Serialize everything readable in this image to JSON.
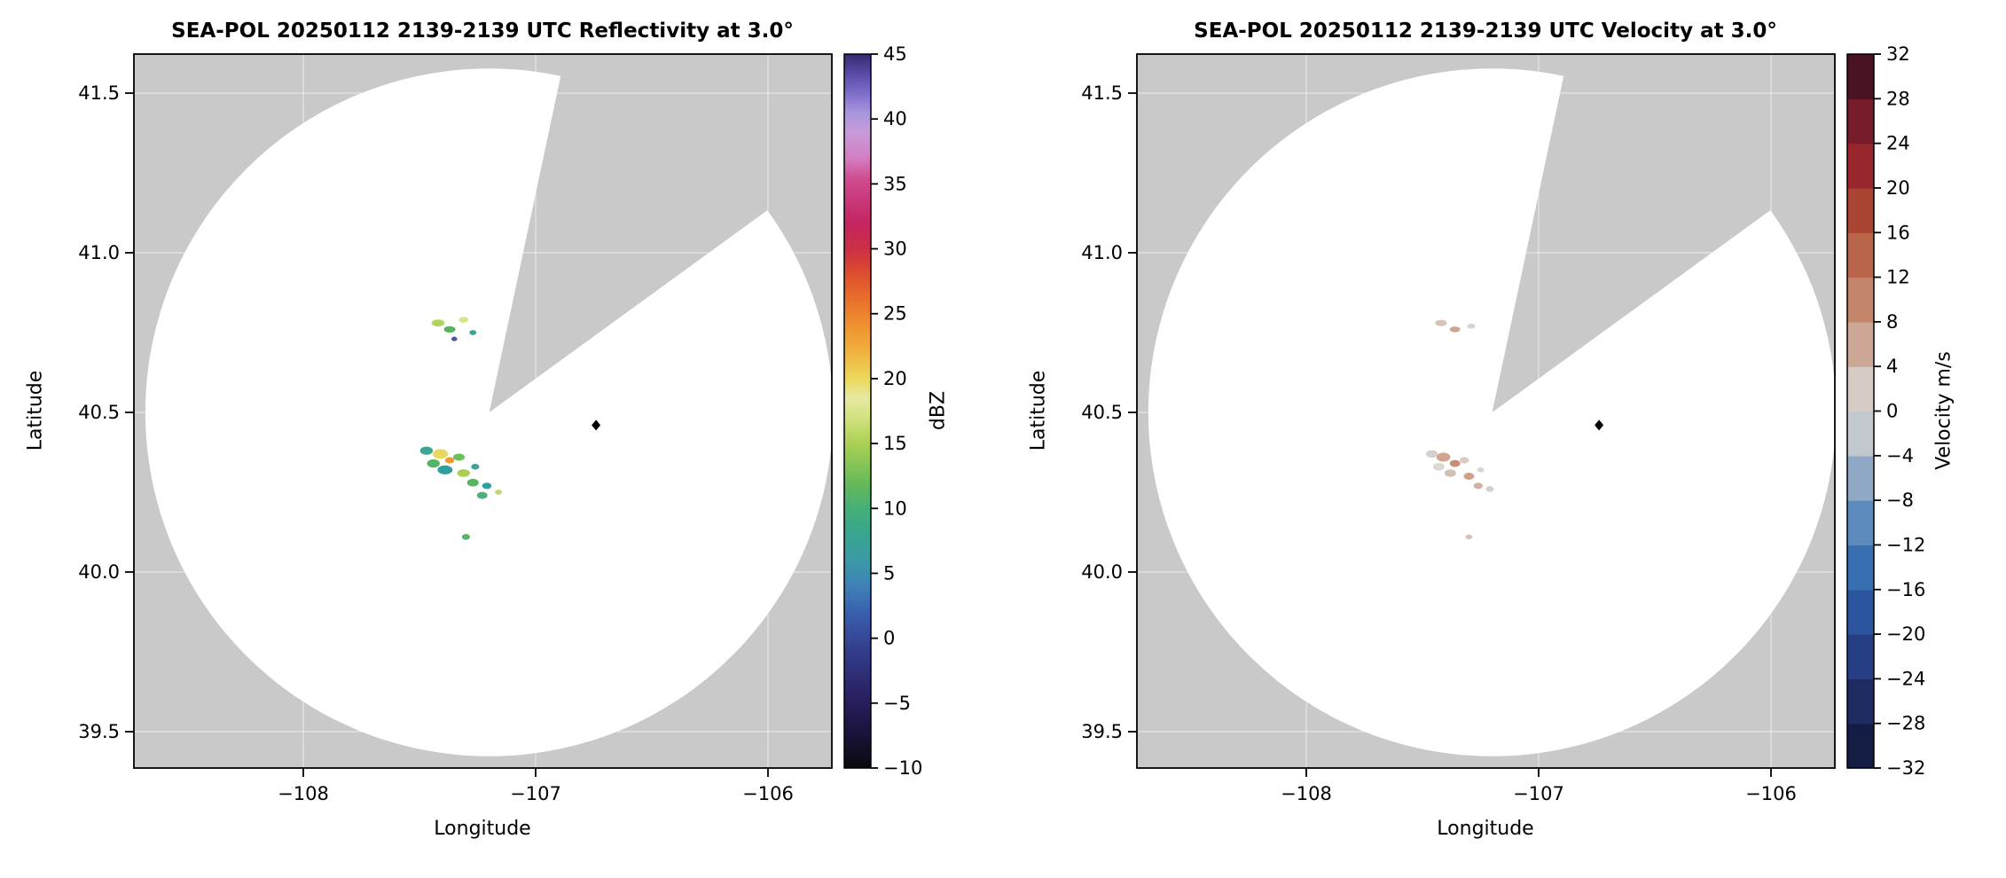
{
  "chart_data": [
    {
      "type": "radar_ppi_map",
      "title": "SEA-POL 20250112 2139-2139 UTC Reflectivity at 3.0°",
      "xlabel": "Longitude",
      "ylabel": "Latitude",
      "xticks": [
        -108,
        -107,
        -106
      ],
      "yticks": [
        39.5,
        40.0,
        40.5,
        41.0,
        41.5
      ],
      "xlim": [
        -108.73,
        -105.73
      ],
      "ylim": [
        39.39,
        41.62
      ],
      "grid": true,
      "radar": {
        "lon": -107.2,
        "lat": 40.5,
        "range_deg_lat": 1.077
      },
      "missing_sector_azimuth_deg": [
        12,
        54
      ],
      "site_marker": {
        "lon": -106.74,
        "lat": 40.46
      },
      "colorbar": {
        "label": "dBZ",
        "type": "continuous",
        "min": -10,
        "max": 45,
        "ticks": [
          -10,
          -5,
          0,
          5,
          10,
          15,
          20,
          25,
          30,
          35,
          40,
          45
        ],
        "stops": [
          {
            "value": -10,
            "color": "#0a0a0c"
          },
          {
            "value": -7,
            "color": "#1c1440"
          },
          {
            "value": -4,
            "color": "#2a2468"
          },
          {
            "value": -1,
            "color": "#343d8c"
          },
          {
            "value": 2,
            "color": "#3a5fae"
          },
          {
            "value": 4,
            "color": "#3f81b6"
          },
          {
            "value": 6,
            "color": "#3b9aa6"
          },
          {
            "value": 8,
            "color": "#37a68f"
          },
          {
            "value": 10,
            "color": "#45af78"
          },
          {
            "value": 12,
            "color": "#67ba58"
          },
          {
            "value": 15,
            "color": "#aad054"
          },
          {
            "value": 17,
            "color": "#d3e27e"
          },
          {
            "value": 18.5,
            "color": "#e7e9a2"
          },
          {
            "value": 20,
            "color": "#ecd95b"
          },
          {
            "value": 22,
            "color": "#f0b23f"
          },
          {
            "value": 24,
            "color": "#ef9330"
          },
          {
            "value": 26,
            "color": "#e9712c"
          },
          {
            "value": 28,
            "color": "#dd4f2e"
          },
          {
            "value": 30,
            "color": "#cb2f44"
          },
          {
            "value": 32,
            "color": "#c42560"
          },
          {
            "value": 34,
            "color": "#ca3a7e"
          },
          {
            "value": 35.5,
            "color": "#cf4f92"
          },
          {
            "value": 37,
            "color": "#d27fc1"
          },
          {
            "value": 39,
            "color": "#c79bd9"
          },
          {
            "value": 40.5,
            "color": "#a795dd"
          },
          {
            "value": 42,
            "color": "#7e6cca"
          },
          {
            "value": 43.5,
            "color": "#5a4aa5"
          },
          {
            "value": 45,
            "color": "#352a72"
          }
        ]
      },
      "echoes": [
        {
          "lon": -107.42,
          "lat": 40.78,
          "w": 0.055,
          "h": 0.022,
          "color": "#b5d45c"
        },
        {
          "lon": -107.37,
          "lat": 40.76,
          "w": 0.05,
          "h": 0.02,
          "color": "#57b465"
        },
        {
          "lon": -107.31,
          "lat": 40.79,
          "w": 0.04,
          "h": 0.018,
          "color": "#d9e388"
        },
        {
          "lon": -107.27,
          "lat": 40.75,
          "w": 0.03,
          "h": 0.016,
          "color": "#3fa392"
        },
        {
          "lon": -107.35,
          "lat": 40.73,
          "w": 0.025,
          "h": 0.014,
          "color": "#4a58a8"
        },
        {
          "lon": -107.47,
          "lat": 40.38,
          "w": 0.055,
          "h": 0.026,
          "color": "#3fa392"
        },
        {
          "lon": -107.41,
          "lat": 40.37,
          "w": 0.065,
          "h": 0.03,
          "color": "#e8d85e"
        },
        {
          "lon": -107.44,
          "lat": 40.34,
          "w": 0.055,
          "h": 0.026,
          "color": "#57b465"
        },
        {
          "lon": -107.37,
          "lat": 40.35,
          "w": 0.04,
          "h": 0.02,
          "color": "#ef9a30"
        },
        {
          "lon": -107.33,
          "lat": 40.36,
          "w": 0.05,
          "h": 0.022,
          "color": "#6abf58"
        },
        {
          "lon": -107.39,
          "lat": 40.32,
          "w": 0.065,
          "h": 0.028,
          "color": "#2f9f9f"
        },
        {
          "lon": -107.31,
          "lat": 40.31,
          "w": 0.055,
          "h": 0.024,
          "color": "#a8cf54"
        },
        {
          "lon": -107.26,
          "lat": 40.33,
          "w": 0.035,
          "h": 0.018,
          "color": "#3fa392"
        },
        {
          "lon": -107.27,
          "lat": 40.28,
          "w": 0.05,
          "h": 0.024,
          "color": "#57b465"
        },
        {
          "lon": -107.21,
          "lat": 40.27,
          "w": 0.04,
          "h": 0.02,
          "color": "#2f9f9f"
        },
        {
          "lon": -107.23,
          "lat": 40.24,
          "w": 0.045,
          "h": 0.022,
          "color": "#4db07a"
        },
        {
          "lon": -107.16,
          "lat": 40.25,
          "w": 0.03,
          "h": 0.016,
          "color": "#bcd96a"
        },
        {
          "lon": -107.3,
          "lat": 40.11,
          "w": 0.035,
          "h": 0.018,
          "color": "#57b465"
        }
      ]
    },
    {
      "type": "radar_ppi_map",
      "title": "SEA-POL 20250112 2139-2139 UTC Velocity at 3.0°",
      "xlabel": "Longitude",
      "ylabel": "Latitude",
      "xticks": [
        -108,
        -107,
        -106
      ],
      "yticks": [
        39.5,
        40.0,
        40.5,
        41.0,
        41.5
      ],
      "xlim": [
        -108.73,
        -105.73
      ],
      "ylim": [
        39.39,
        41.62
      ],
      "grid": true,
      "radar": {
        "lon": -107.2,
        "lat": 40.5,
        "range_deg_lat": 1.077
      },
      "missing_sector_azimuth_deg": [
        12,
        54
      ],
      "site_marker": {
        "lon": -106.74,
        "lat": 40.46
      },
      "colorbar": {
        "label": "Velocity m/s",
        "type": "discrete",
        "min": -32,
        "max": 32,
        "ticks": [
          -32,
          -28,
          -24,
          -20,
          -16,
          -12,
          -8,
          -4,
          0,
          4,
          8,
          12,
          16,
          20,
          24,
          28,
          32
        ],
        "segments": [
          {
            "from": -32,
            "to": -28,
            "color": "#131c43"
          },
          {
            "from": -28,
            "to": -24,
            "color": "#1e2a62"
          },
          {
            "from": -24,
            "to": -20,
            "color": "#253e84"
          },
          {
            "from": -20,
            "to": -16,
            "color": "#2b549e"
          },
          {
            "from": -16,
            "to": -12,
            "color": "#386fb0"
          },
          {
            "from": -12,
            "to": -8,
            "color": "#5c8abd"
          },
          {
            "from": -8,
            "to": -4,
            "color": "#8ea8c5"
          },
          {
            "from": -4,
            "to": 0,
            "color": "#c3c8cf"
          },
          {
            "from": 0,
            "to": 4,
            "color": "#d5cbc5"
          },
          {
            "from": 4,
            "to": 8,
            "color": "#cda795"
          },
          {
            "from": 8,
            "to": 12,
            "color": "#c3866a"
          },
          {
            "from": 12,
            "to": 16,
            "color": "#b8654a"
          },
          {
            "from": 16,
            "to": 20,
            "color": "#aa4534"
          },
          {
            "from": 20,
            "to": 24,
            "color": "#97262d"
          },
          {
            "from": 24,
            "to": 28,
            "color": "#771c2b"
          },
          {
            "from": 28,
            "to": 32,
            "color": "#4a1322"
          }
        ]
      },
      "echoes": [
        {
          "lon": -107.42,
          "lat": 40.78,
          "w": 0.05,
          "h": 0.02,
          "color": "#d6c3ba"
        },
        {
          "lon": -107.36,
          "lat": 40.76,
          "w": 0.045,
          "h": 0.018,
          "color": "#cda794"
        },
        {
          "lon": -107.29,
          "lat": 40.77,
          "w": 0.035,
          "h": 0.016,
          "color": "#d9d4cf"
        },
        {
          "lon": -107.46,
          "lat": 40.37,
          "w": 0.05,
          "h": 0.024,
          "color": "#d9d0ca"
        },
        {
          "lon": -107.41,
          "lat": 40.36,
          "w": 0.06,
          "h": 0.028,
          "color": "#d0a48e"
        },
        {
          "lon": -107.43,
          "lat": 40.33,
          "w": 0.05,
          "h": 0.024,
          "color": "#dcd7d2"
        },
        {
          "lon": -107.36,
          "lat": 40.34,
          "w": 0.045,
          "h": 0.022,
          "color": "#c88d74"
        },
        {
          "lon": -107.32,
          "lat": 40.35,
          "w": 0.04,
          "h": 0.02,
          "color": "#d7cdc6"
        },
        {
          "lon": -107.38,
          "lat": 40.31,
          "w": 0.05,
          "h": 0.024,
          "color": "#d3c0b5"
        },
        {
          "lon": -107.3,
          "lat": 40.3,
          "w": 0.045,
          "h": 0.022,
          "color": "#cfa08c"
        },
        {
          "lon": -107.25,
          "lat": 40.32,
          "w": 0.03,
          "h": 0.016,
          "color": "#dbd6d0"
        },
        {
          "lon": -107.26,
          "lat": 40.27,
          "w": 0.04,
          "h": 0.02,
          "color": "#d2b3a3"
        },
        {
          "lon": -107.21,
          "lat": 40.26,
          "w": 0.035,
          "h": 0.018,
          "color": "#d8cfc8"
        },
        {
          "lon": -107.3,
          "lat": 40.11,
          "w": 0.03,
          "h": 0.015,
          "color": "#d5c2b8"
        }
      ]
    }
  ]
}
